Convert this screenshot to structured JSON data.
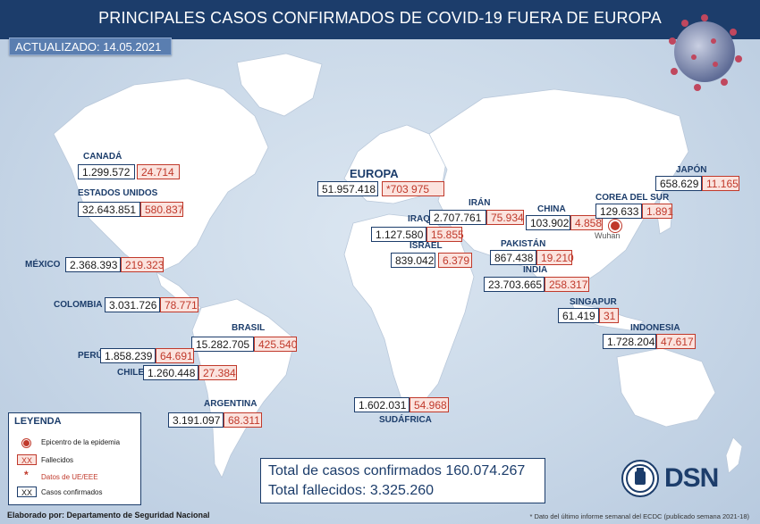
{
  "title": "PRINCIPALES CASOS CONFIRMADOS DE COVID-19 FUERA DE EUROPA",
  "updated": {
    "label": "ACTUALIZADO:",
    "date": "14.05.2021"
  },
  "countries": {
    "canada": {
      "name": "CANADÁ",
      "cases": "1.299.572",
      "deaths": "24.714"
    },
    "usa": {
      "name": "ESTADOS UNIDOS",
      "cases": "32.643.851",
      "deaths": "580.837"
    },
    "mexico": {
      "name": "MÉXICO",
      "cases": "2.368.393",
      "deaths": "219.323"
    },
    "colombia": {
      "name": "COLOMBIA",
      "cases": "3.031.726",
      "deaths": "78.771"
    },
    "brasil": {
      "name": "BRASIL",
      "cases": "15.282.705",
      "deaths": "425.540"
    },
    "peru": {
      "name": "PERÚ",
      "cases": "1.858.239",
      "deaths": "64.691"
    },
    "chile": {
      "name": "CHILE",
      "cases": "1.260.448",
      "deaths": "27.384"
    },
    "argentina": {
      "name": "ARGENTINA",
      "cases": "3.191.097",
      "deaths": "68.311"
    },
    "europa": {
      "name": "EUROPA",
      "cases": "51.957.418",
      "deaths": "*703 975"
    },
    "iran": {
      "name": "IRÁN",
      "cases": "2.707.761",
      "deaths": "75.934"
    },
    "iraq": {
      "name": "IRAQ",
      "cases": "1.127.580",
      "deaths": "15.855"
    },
    "israel": {
      "name": "ISRAEL",
      "cases": "839.042",
      "deaths": "6.379"
    },
    "pakistan": {
      "name": "PAKISTÁN",
      "cases": "867.438",
      "deaths": "19.210"
    },
    "india": {
      "name": "INDIA",
      "cases": "23.703.665",
      "deaths": "258.317"
    },
    "china": {
      "name": "CHINA",
      "cases": "103.902",
      "deaths": "4.858"
    },
    "corea": {
      "name": "COREA DEL SUR",
      "cases": "129.633",
      "deaths": "1.891"
    },
    "japon": {
      "name": "JAPÓN",
      "cases": "658.629",
      "deaths": "11.165"
    },
    "singapur": {
      "name": "SINGAPUR",
      "cases": "61.419",
      "deaths": "31"
    },
    "indonesia": {
      "name": "INDONESIA",
      "cases": "1.728.204",
      "deaths": "47.617"
    },
    "sudafrica": {
      "name": "SUDÁFRICA",
      "cases": "1.602.031",
      "deaths": "54.968"
    }
  },
  "epicenter_city": "Wuhan",
  "legend": {
    "title": "LEYENDA",
    "epicenter": "Epicentro de la epidemia",
    "deaths_sample": "XX",
    "deaths": "Fallecidos",
    "ue_symbol": "*",
    "ue": "Datos de UE/EEE",
    "cases_sample": "XX",
    "cases": "Casos confirmados"
  },
  "totals": {
    "cases": "Total de casos confirmados 160.074.267",
    "deaths": "Total fallecidos: 3.325.260"
  },
  "footer": {
    "credit": "Elaborado por: Departamento de Seguridad Nacional",
    "note": "* Dato del último informe semanal del ECDC (publicado semana 2021-18)"
  },
  "logo": {
    "text": "DSN",
    "seal_icon": "coat-of-arms-icon"
  },
  "decoration": {
    "virus_icon": "coronavirus-icon"
  },
  "colors": {
    "navy": "#1c3d6b",
    "death_red": "#c0392b",
    "land": "#ffffff",
    "ocean": "#c9d8e8"
  }
}
